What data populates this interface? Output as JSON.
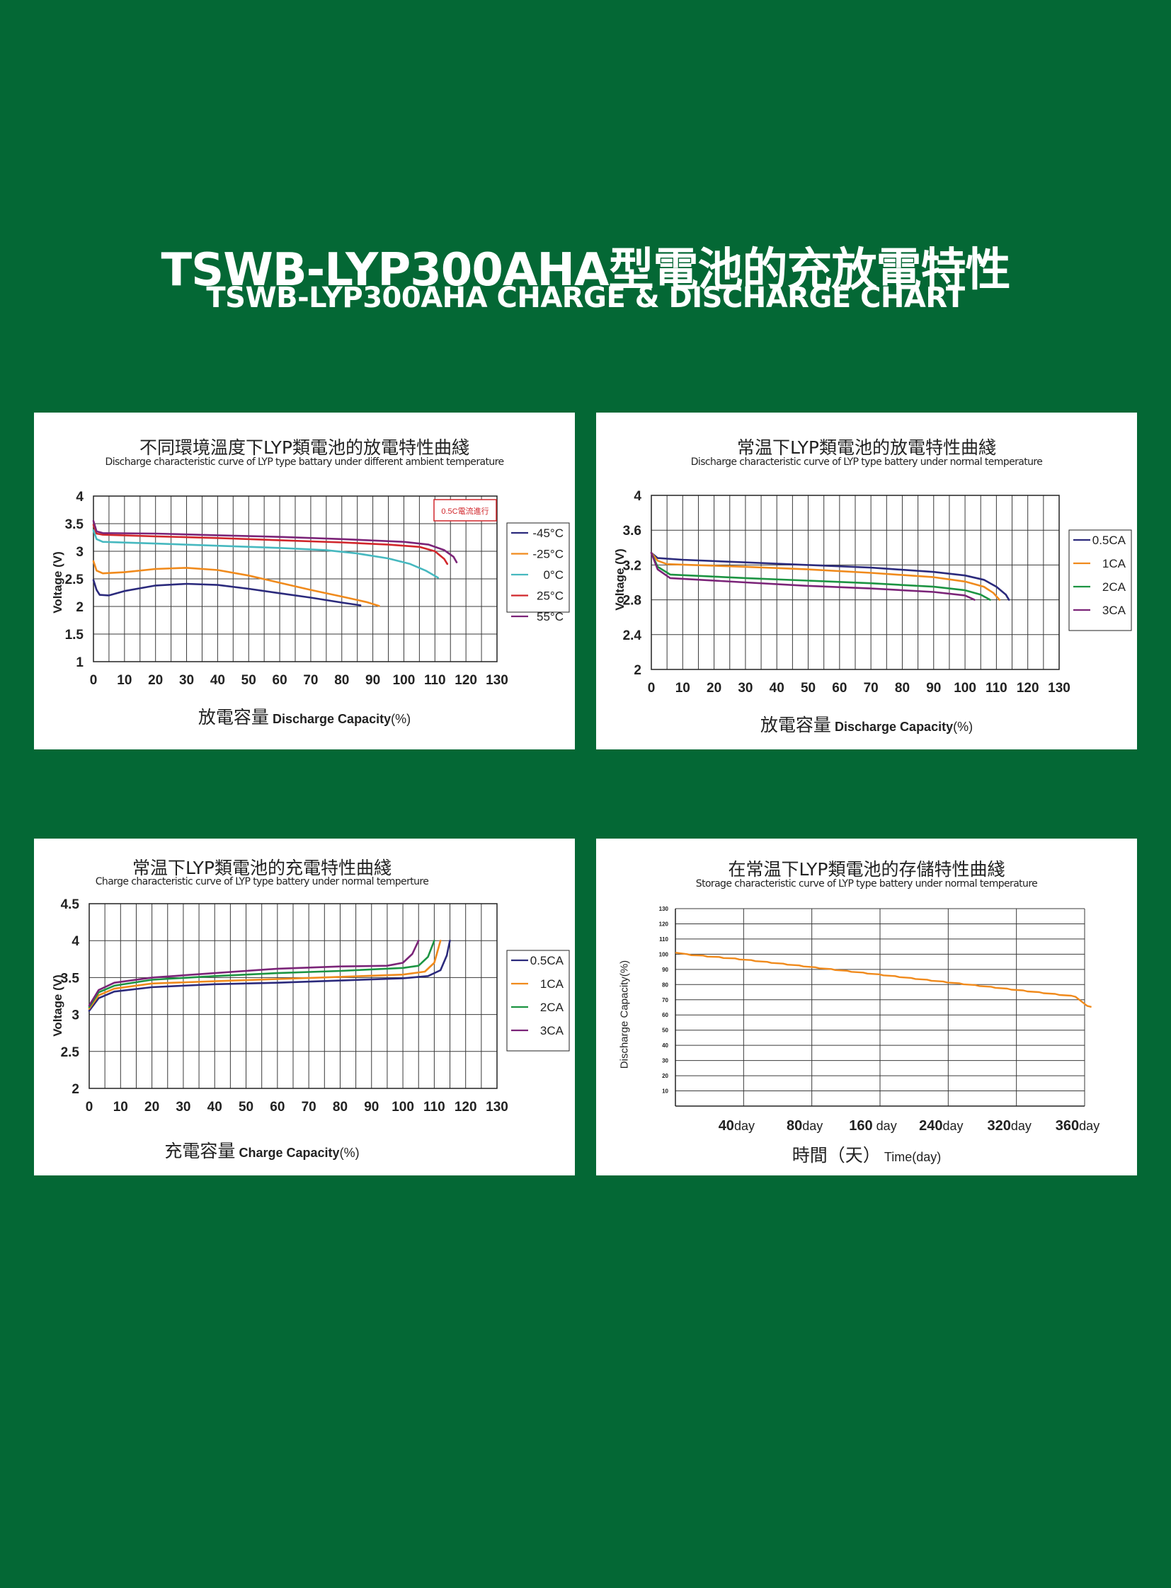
{
  "page": {
    "title_cn": "TSWB-LYP300AHA型電池的充放電特性",
    "title_en": "TSWB-LYP300AHA CHARGE & DISCHARGE CHART"
  },
  "chart_data": [
    {
      "type": "line",
      "title": "不同環境溫度下LYP類電池的放電特性曲綫",
      "subtitle": "Discharge characteristic curve of LYP type battary under different ambient temperature",
      "xlabel_cn": "放電容量",
      "xlabel_en": "Discharge Capacity",
      "xlabel_unit": "(%)",
      "ylabel": "Voltage (V)",
      "xlim": [
        0,
        130
      ],
      "ylim": [
        1,
        4
      ],
      "xticks": [
        0,
        10,
        20,
        30,
        40,
        50,
        60,
        70,
        80,
        90,
        100,
        110,
        120,
        130
      ],
      "yticks": [
        1,
        1.5,
        2,
        2.5,
        3,
        3.5,
        4
      ],
      "grid": true,
      "annotation": "0.5C電流進行",
      "legend_position": "right",
      "series": [
        {
          "name": "-45°C",
          "color": "#2b2a7c",
          "points": [
            [
              0,
              2.48
            ],
            [
              1,
              2.3
            ],
            [
              2,
              2.21
            ],
            [
              5,
              2.2
            ],
            [
              10,
              2.28
            ],
            [
              20,
              2.38
            ],
            [
              30,
              2.41
            ],
            [
              40,
              2.39
            ],
            [
              50,
              2.32
            ],
            [
              60,
              2.24
            ],
            [
              70,
              2.16
            ],
            [
              80,
              2.07
            ],
            [
              86,
              2.02
            ]
          ]
        },
        {
          "name": "-25°C",
          "color": "#f08a1c",
          "points": [
            [
              0,
              2.82
            ],
            [
              1,
              2.65
            ],
            [
              3,
              2.6
            ],
            [
              10,
              2.62
            ],
            [
              20,
              2.68
            ],
            [
              30,
              2.7
            ],
            [
              40,
              2.66
            ],
            [
              50,
              2.56
            ],
            [
              60,
              2.43
            ],
            [
              70,
              2.3
            ],
            [
              80,
              2.18
            ],
            [
              88,
              2.08
            ],
            [
              92,
              2.01
            ]
          ]
        },
        {
          "name": "0°C",
          "color": "#46b8bf",
          "points": [
            [
              0,
              3.38
            ],
            [
              1,
              3.22
            ],
            [
              3,
              3.17
            ],
            [
              20,
              3.14
            ],
            [
              40,
              3.1
            ],
            [
              60,
              3.06
            ],
            [
              75,
              3.02
            ],
            [
              85,
              2.96
            ],
            [
              95,
              2.87
            ],
            [
              102,
              2.77
            ],
            [
              107,
              2.65
            ],
            [
              111,
              2.52
            ]
          ]
        },
        {
          "name": "25°C",
          "color": "#d1262b",
          "points": [
            [
              0,
              3.48
            ],
            [
              1,
              3.32
            ],
            [
              3,
              3.3
            ],
            [
              20,
              3.27
            ],
            [
              40,
              3.24
            ],
            [
              60,
              3.2
            ],
            [
              80,
              3.16
            ],
            [
              95,
              3.12
            ],
            [
              105,
              3.08
            ],
            [
              110,
              3.0
            ],
            [
              113,
              2.86
            ],
            [
              114,
              2.77
            ]
          ]
        },
        {
          "name": "55°C",
          "color": "#7b2478",
          "points": [
            [
              0,
              3.55
            ],
            [
              1,
              3.36
            ],
            [
              3,
              3.33
            ],
            [
              20,
              3.32
            ],
            [
              40,
              3.29
            ],
            [
              60,
              3.26
            ],
            [
              80,
              3.22
            ],
            [
              100,
              3.17
            ],
            [
              108,
              3.12
            ],
            [
              113,
              3.02
            ],
            [
              116,
              2.9
            ],
            [
              117,
              2.8
            ]
          ]
        }
      ]
    },
    {
      "type": "line",
      "title": "常温下LYP類電池的放電特性曲綫",
      "subtitle": "Discharge characteristic curve of LYP type battery under normal temperature",
      "xlabel_cn": "放電容量",
      "xlabel_en": "Discharge Capacity",
      "xlabel_unit": "(%)",
      "ylabel": "Voltage (V)",
      "xlim": [
        0,
        130
      ],
      "ylim": [
        2,
        4
      ],
      "xticks": [
        0,
        10,
        20,
        30,
        40,
        50,
        60,
        70,
        80,
        90,
        100,
        110,
        120,
        130
      ],
      "yticks": [
        2,
        2.4,
        2.8,
        3.2,
        3.6,
        4
      ],
      "grid": true,
      "legend_position": "right",
      "series": [
        {
          "name": "0.5CA",
          "color": "#2b2a7c",
          "points": [
            [
              0,
              3.34
            ],
            [
              2,
              3.28
            ],
            [
              10,
              3.26
            ],
            [
              30,
              3.23
            ],
            [
              50,
              3.2
            ],
            [
              70,
              3.17
            ],
            [
              90,
              3.12
            ],
            [
              100,
              3.08
            ],
            [
              106,
              3.03
            ],
            [
              110,
              2.95
            ],
            [
              113,
              2.86
            ],
            [
              114,
              2.8
            ]
          ]
        },
        {
          "name": "1CA",
          "color": "#f08a1c",
          "points": [
            [
              0,
              3.34
            ],
            [
              2,
              3.25
            ],
            [
              5,
              3.21
            ],
            [
              30,
              3.18
            ],
            [
              50,
              3.15
            ],
            [
              70,
              3.11
            ],
            [
              90,
              3.06
            ],
            [
              100,
              3.01
            ],
            [
              106,
              2.95
            ],
            [
              109,
              2.88
            ],
            [
              111,
              2.8
            ]
          ]
        },
        {
          "name": "2CA",
          "color": "#1c9442",
          "points": [
            [
              0,
              3.34
            ],
            [
              2,
              3.18
            ],
            [
              6,
              3.09
            ],
            [
              30,
              3.05
            ],
            [
              50,
              3.02
            ],
            [
              70,
              2.99
            ],
            [
              90,
              2.95
            ],
            [
              100,
              2.91
            ],
            [
              105,
              2.86
            ],
            [
              108,
              2.8
            ]
          ]
        },
        {
          "name": "3CA",
          "color": "#7b2478",
          "points": [
            [
              0,
              3.34
            ],
            [
              2,
              3.15
            ],
            [
              6,
              3.05
            ],
            [
              30,
              3.0
            ],
            [
              50,
              2.96
            ],
            [
              70,
              2.93
            ],
            [
              90,
              2.89
            ],
            [
              100,
              2.85
            ],
            [
              103,
              2.8
            ]
          ]
        }
      ]
    },
    {
      "type": "line",
      "title": "常温下LYP類電池的充電特性曲綫",
      "subtitle": "Charge characteristic curve of LYP type battery under normal temperture",
      "xlabel_cn": "充電容量",
      "xlabel_en": "Charge Capacity",
      "xlabel_unit": "(%)",
      "ylabel": "Voltage (V)",
      "xlim": [
        0,
        130
      ],
      "ylim": [
        2,
        4.5
      ],
      "xticks": [
        0,
        10,
        20,
        30,
        40,
        50,
        60,
        70,
        80,
        90,
        100,
        110,
        120,
        130
      ],
      "yticks": [
        2,
        2.5,
        3,
        3.5,
        4,
        4.5
      ],
      "grid": true,
      "legend_position": "right",
      "series": [
        {
          "name": "0.5CA",
          "color": "#2b2a7c",
          "points": [
            [
              0,
              3.05
            ],
            [
              3,
              3.22
            ],
            [
              8,
              3.31
            ],
            [
              20,
              3.37
            ],
            [
              40,
              3.41
            ],
            [
              60,
              3.43
            ],
            [
              80,
              3.46
            ],
            [
              100,
              3.49
            ],
            [
              108,
              3.52
            ],
            [
              112,
              3.6
            ],
            [
              114,
              3.8
            ],
            [
              115,
              4.0
            ]
          ]
        },
        {
          "name": "1CA",
          "color": "#f08a1c",
          "points": [
            [
              0,
              3.08
            ],
            [
              3,
              3.26
            ],
            [
              8,
              3.35
            ],
            [
              20,
              3.42
            ],
            [
              40,
              3.45
            ],
            [
              60,
              3.48
            ],
            [
              80,
              3.51
            ],
            [
              100,
              3.54
            ],
            [
              107,
              3.58
            ],
            [
              110,
              3.7
            ],
            [
              111,
              3.85
            ],
            [
              112,
              4.0
            ]
          ]
        },
        {
          "name": "2CA",
          "color": "#1c9442",
          "points": [
            [
              0,
              3.1
            ],
            [
              3,
              3.3
            ],
            [
              8,
              3.39
            ],
            [
              20,
              3.47
            ],
            [
              40,
              3.52
            ],
            [
              60,
              3.56
            ],
            [
              80,
              3.59
            ],
            [
              100,
              3.63
            ],
            [
              105,
              3.66
            ],
            [
              108,
              3.78
            ],
            [
              110,
              4.0
            ]
          ]
        },
        {
          "name": "3CA",
          "color": "#7b2478",
          "points": [
            [
              0,
              3.12
            ],
            [
              3,
              3.33
            ],
            [
              8,
              3.43
            ],
            [
              20,
              3.5
            ],
            [
              40,
              3.56
            ],
            [
              60,
              3.62
            ],
            [
              80,
              3.65
            ],
            [
              95,
              3.66
            ],
            [
              100,
              3.7
            ],
            [
              103,
              3.82
            ],
            [
              105,
              4.0
            ]
          ]
        }
      ]
    },
    {
      "type": "line",
      "title": "在常温下LYP類電池的存儲特性曲綫",
      "subtitle": "Storage characteristic curve of LYP type battery under normal temperature",
      "xlabel_cn": "時間（天）",
      "xlabel_en": "Time(day)",
      "ylabel": "Discharge Capacity(%)",
      "ylim": [
        0,
        130
      ],
      "yticks": [
        10,
        20,
        30,
        40,
        50,
        60,
        70,
        80,
        90,
        100,
        110,
        120,
        130
      ],
      "xtick_labels": [
        {
          "value": "40",
          "unit": "day"
        },
        {
          "value": "80",
          "unit": "day"
        },
        {
          "value": "160",
          "unit": " day"
        },
        {
          "value": "240",
          "unit": "day"
        },
        {
          "value": "320",
          "unit": "day"
        },
        {
          "value": "360",
          "unit": "day"
        }
      ],
      "grid": true,
      "series": [
        {
          "name": "",
          "color": "#f08a1c",
          "points": [
            [
              0,
              101
            ],
            [
              1,
              97
            ],
            [
              2,
              92
            ],
            [
              3,
              87
            ],
            [
              4,
              82
            ],
            [
              5,
              77
            ],
            [
              6,
              72
            ],
            [
              6.1,
              66
            ]
          ]
        }
      ]
    }
  ]
}
